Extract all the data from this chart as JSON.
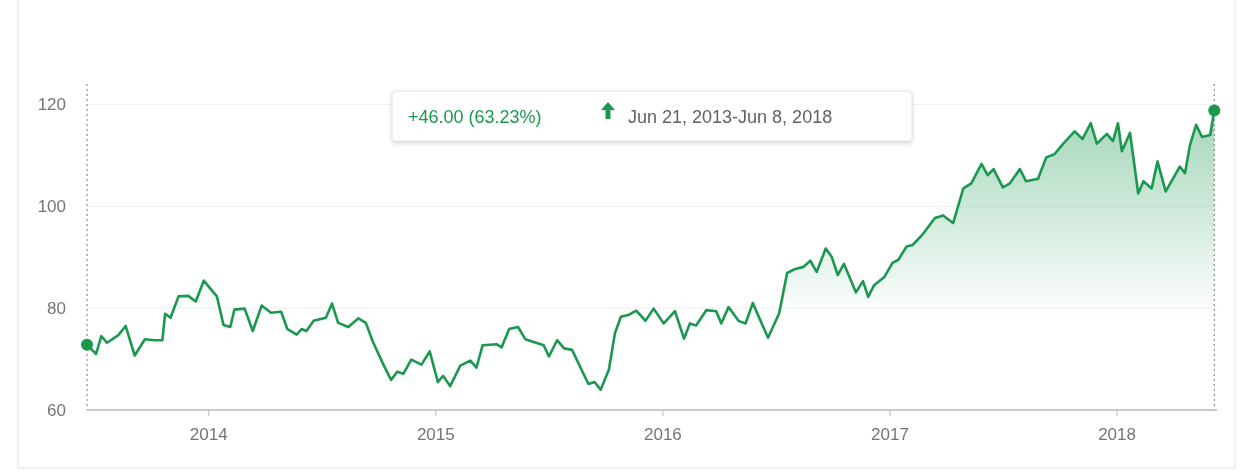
{
  "chart_data": {
    "type": "area",
    "annotations": [
      "+46.00 (63.23%)",
      "Jun 21, 2013-Jun 8, 2018"
    ],
    "xlim": [
      2013.464,
      2018.44
    ],
    "xticks": [
      2014,
      2015,
      2016,
      2017,
      2018
    ],
    "ylim": [
      60,
      124
    ],
    "yticks": [
      60,
      80,
      100,
      120
    ],
    "grid": "y",
    "ref_lines": [
      {
        "axis": "x",
        "value": 2013.464,
        "line_style": "dotted",
        "color": "#777777"
      },
      {
        "axis": "x",
        "value": 2018.428,
        "line_style": "dotted",
        "color": "#777777"
      }
    ],
    "series": [
      {
        "color": "#1a9850",
        "x": [
          2013.464,
          2013.504,
          2013.527,
          2013.552,
          2013.602,
          2013.634,
          2013.674,
          2013.719,
          2013.763,
          2013.796,
          2013.808,
          2013.832,
          2013.867,
          2013.91,
          2013.943,
          2013.978,
          2014.036,
          2014.065,
          2014.095,
          2014.113,
          2014.158,
          2014.194,
          2014.233,
          2014.274,
          2014.319,
          2014.346,
          2014.387,
          2014.409,
          2014.43,
          2014.462,
          2014.516,
          2014.543,
          2014.57,
          2014.615,
          2014.659,
          2014.692,
          2014.722,
          2014.767,
          2014.803,
          2014.83,
          2014.857,
          2014.892,
          2014.937,
          2014.973,
          2015.009,
          2015.032,
          2015.063,
          2015.108,
          2015.152,
          2015.179,
          2015.206,
          2015.269,
          2015.29,
          2015.323,
          2015.362,
          2015.394,
          2015.475,
          2015.498,
          2015.534,
          2015.565,
          2015.6,
          2015.645,
          2015.672,
          2015.699,
          2015.726,
          2015.762,
          2015.789,
          2015.815,
          2015.851,
          2015.882,
          2015.897,
          2015.923,
          2015.959,
          2016.004,
          2016.053,
          2016.093,
          2016.119,
          2016.146,
          2016.191,
          2016.235,
          2016.257,
          2016.289,
          2016.333,
          2016.364,
          2016.396,
          2016.431,
          2016.463,
          2016.512,
          2016.547,
          2016.583,
          2016.619,
          2016.649,
          2016.677,
          2016.717,
          2016.743,
          2016.77,
          2016.797,
          2016.85,
          2016.881,
          2016.904,
          2016.93,
          2016.975,
          2017.011,
          2017.037,
          2017.073,
          2017.1,
          2017.144,
          2017.198,
          2017.234,
          2017.278,
          2017.323,
          2017.358,
          2017.403,
          2017.43,
          2017.456,
          2017.497,
          2017.528,
          2017.572,
          2017.599,
          2017.652,
          2017.688,
          2017.724,
          2017.765,
          2017.813,
          2017.848,
          2017.884,
          2017.911,
          2017.955,
          2017.982,
          2018.004,
          2018.021,
          2018.057,
          2018.093,
          2018.116,
          2018.152,
          2018.178,
          2018.214,
          2018.25,
          2018.276,
          2018.299,
          2018.321,
          2018.348,
          2018.374,
          2018.41,
          2018.428
        ],
        "values": [
          72.8,
          71,
          74.5,
          73.2,
          74.7,
          76.5,
          70.7,
          73.9,
          73.7,
          73.7,
          78.9,
          78.1,
          82.3,
          82.4,
          81.3,
          85.4,
          82.3,
          76.7,
          76.3,
          79.7,
          79.9,
          75.5,
          80.5,
          79.1,
          79.3,
          75.9,
          74.8,
          75.9,
          75.5,
          77.5,
          78.1,
          80.9,
          77.1,
          76.3,
          78,
          77.1,
          73.5,
          69.1,
          65.9,
          67.5,
          67.1,
          69.9,
          68.9,
          71.5,
          65.5,
          66.7,
          64.7,
          68.7,
          69.7,
          68.3,
          72.7,
          72.9,
          72.3,
          75.9,
          76.3,
          73.9,
          72.7,
          70.5,
          73.7,
          72.1,
          71.8,
          67.6,
          65.1,
          65.5,
          64,
          67.9,
          75.1,
          78.3,
          78.7,
          79.5,
          78.8,
          77.5,
          79.9,
          77,
          79.4,
          74,
          77,
          76.6,
          79.6,
          79.4,
          77,
          80.2,
          77.5,
          77,
          81,
          77.4,
          74.2,
          79,
          86.9,
          87.7,
          88.1,
          89.3,
          87.1,
          91.7,
          90.1,
          86.5,
          88.7,
          83.1,
          85.3,
          82.2,
          84.5,
          86.1,
          88.9,
          89.5,
          92.1,
          92.4,
          94.5,
          97.7,
          98.2,
          96.7,
          103.5,
          104.5,
          108.3,
          106.1,
          107.3,
          103.7,
          104.5,
          107.3,
          104.9,
          105.4,
          109.6,
          110.2,
          112.4,
          114.7,
          113.2,
          116.3,
          112.3,
          114.2,
          112.8,
          116.3,
          110.8,
          114.4,
          102.5,
          104.9,
          103.5,
          108.8,
          102.9,
          105.7,
          107.8,
          106.5,
          112,
          116,
          113.6,
          114,
          118.8
        ]
      }
    ]
  }
}
